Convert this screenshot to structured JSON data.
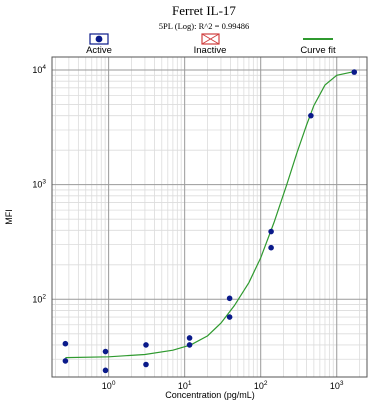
{
  "chart_data": {
    "type": "scatter",
    "title": "Ferret IL-17",
    "subtitle": "5PL (Log): R^2 = 0.99486",
    "xlabel": "Concentration (pg/mL)",
    "ylabel": "MFI",
    "x_scale": "log",
    "y_scale": "log",
    "xlim": [
      0.18,
      2500
    ],
    "ylim": [
      21,
      13000
    ],
    "grid": true,
    "legend_position": "top",
    "legend": [
      {
        "label": "Active",
        "marker": "filled-circle"
      },
      {
        "label": "Inactive",
        "marker": "crossed-box"
      },
      {
        "label": "Curve fit",
        "marker": "line"
      }
    ],
    "x_ticks": [
      {
        "value": 1,
        "base": "10",
        "exp": "0"
      },
      {
        "value": 10,
        "base": "10",
        "exp": "1"
      },
      {
        "value": 100,
        "base": "10",
        "exp": "2"
      },
      {
        "value": 1000,
        "base": "10",
        "exp": "3"
      }
    ],
    "y_ticks": [
      {
        "value": 100,
        "base": "10",
        "exp": "2"
      },
      {
        "value": 1000,
        "base": "10",
        "exp": "3"
      },
      {
        "value": 10000,
        "base": "10",
        "exp": "4"
      }
    ],
    "series": [
      {
        "name": "Active",
        "x": [
          0.27,
          0.27,
          0.91,
          0.91,
          3.1,
          3.1,
          11.6,
          11.6,
          39,
          39,
          137,
          137,
          457,
          1700
        ],
        "y": [
          41,
          29,
          35,
          24,
          40,
          27,
          46,
          40,
          102,
          70,
          390,
          282,
          4000,
          9600
        ]
      },
      {
        "name": "Curve fit",
        "x": [
          0.27,
          1,
          3,
          7,
          12,
          20,
          30,
          45,
          70,
          100,
          150,
          220,
          300,
          400,
          500,
          700,
          1000,
          1700
        ],
        "y": [
          31,
          31.5,
          33,
          36,
          40,
          48,
          62,
          88,
          140,
          230,
          470,
          1000,
          1900,
          3300,
          4900,
          7400,
          9000,
          9700
        ]
      }
    ],
    "colors": {
      "active_marker": "#0a1a8a",
      "inactive_marker": "#d04040",
      "curve": "#2f9a2f",
      "grid_major": "#9a9a9a",
      "grid_minor": "#dcdcdc"
    }
  }
}
